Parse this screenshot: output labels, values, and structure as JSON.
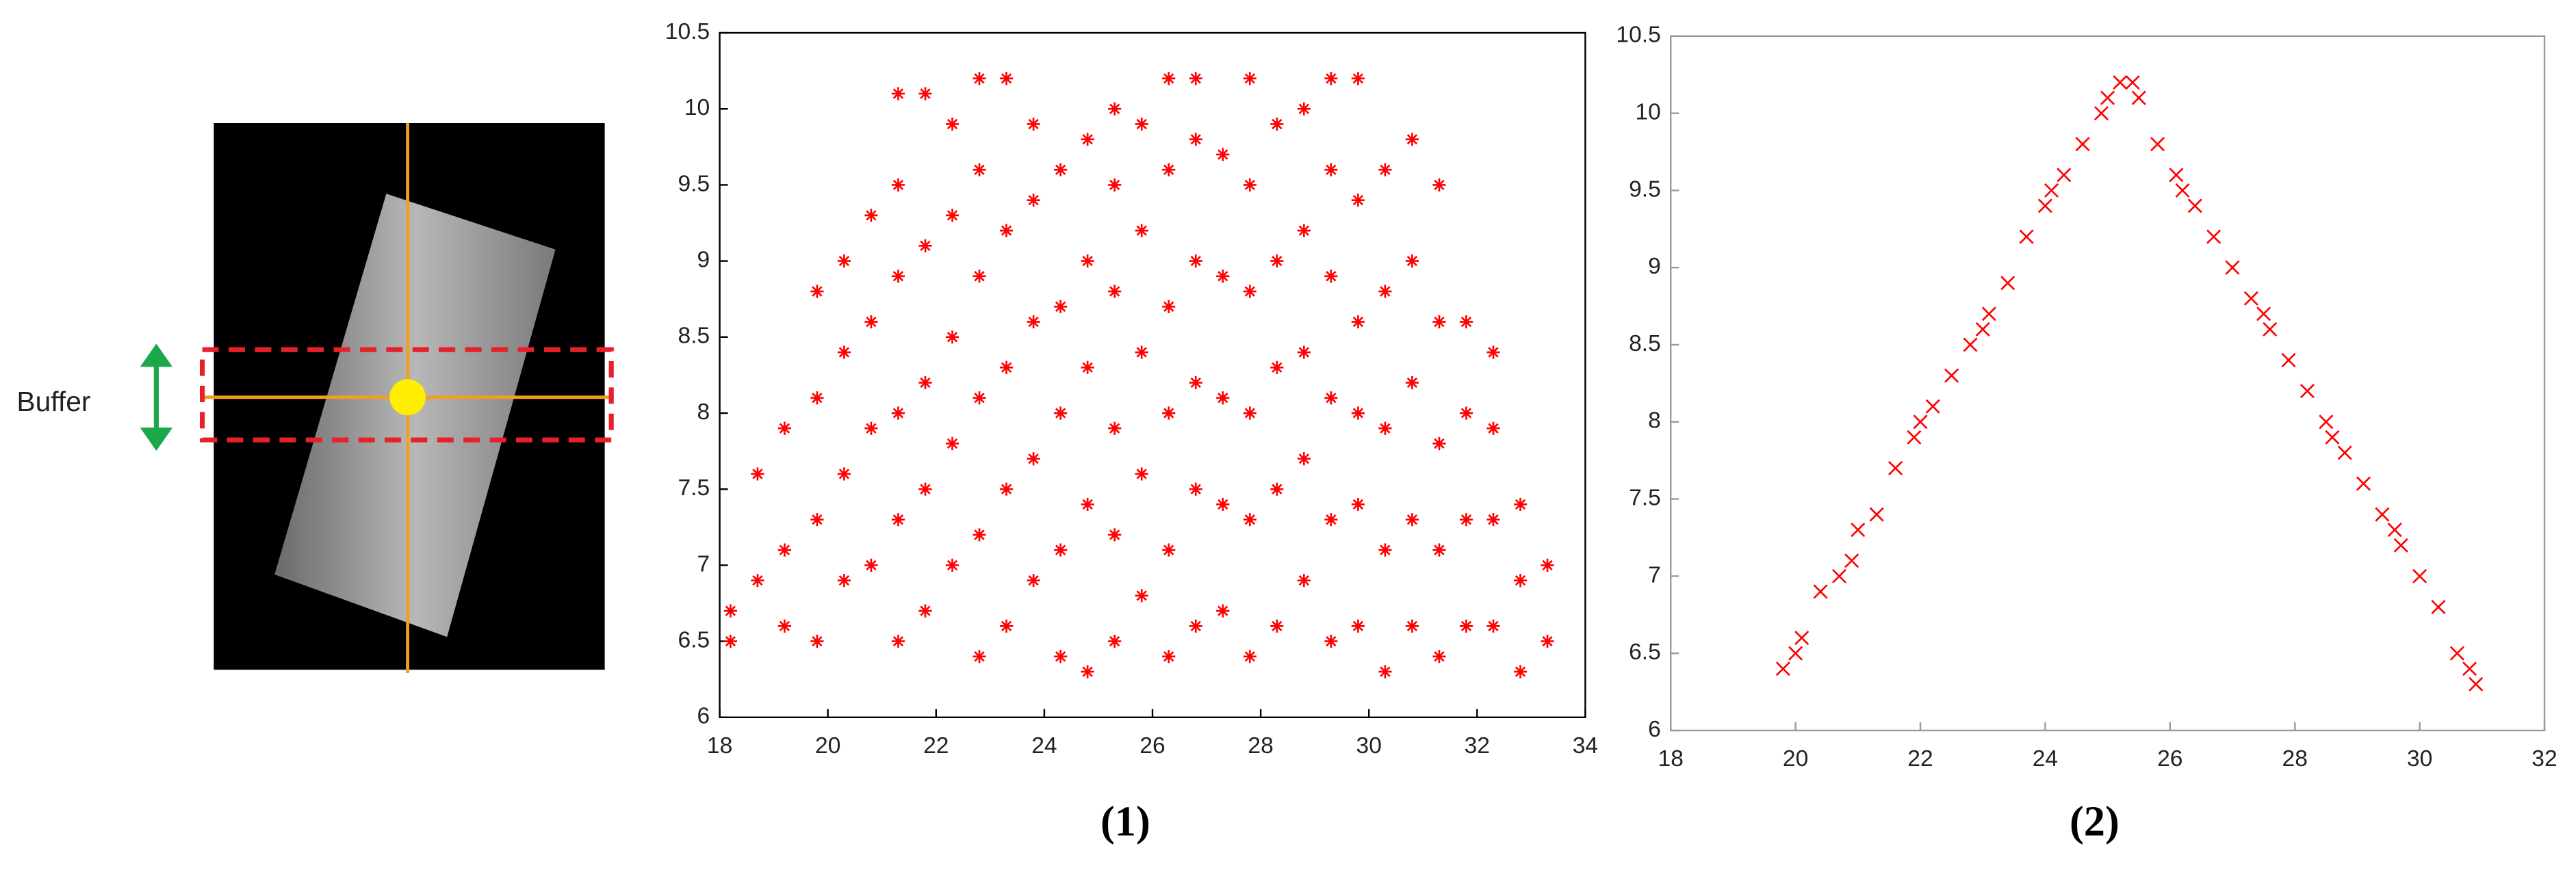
{
  "figure": {
    "buffer_label": "Buffer"
  },
  "chart_data": [
    {
      "type": "scatter",
      "caption": "(1)",
      "color": "#ff0000",
      "marker": "asterisk",
      "xlim": [
        18,
        34
      ],
      "xticks": [
        18,
        20,
        22,
        24,
        26,
        28,
        30,
        32,
        34
      ],
      "ylim": [
        6,
        10.5
      ],
      "yticks": [
        6,
        6.5,
        7,
        7.5,
        8,
        8.5,
        9,
        9.5,
        10,
        10.5
      ],
      "x": [
        18.2,
        18.2,
        18.7,
        18.7,
        19.2,
        19.2,
        19.2,
        19.8,
        19.8,
        19.8,
        19.8,
        20.3,
        20.3,
        20.3,
        20.3,
        20.8,
        20.8,
        20.8,
        20.8,
        21.3,
        21.3,
        21.3,
        21.3,
        21.3,
        21.3,
        21.8,
        21.8,
        21.8,
        21.8,
        21.8,
        22.3,
        22.3,
        22.3,
        22.3,
        22.3,
        22.8,
        22.8,
        22.8,
        22.8,
        22.8,
        22.8,
        23.3,
        23.3,
        23.3,
        23.3,
        23.3,
        23.8,
        23.8,
        23.8,
        23.8,
        23.8,
        24.3,
        24.3,
        24.3,
        24.3,
        24.3,
        24.8,
        24.8,
        24.8,
        24.8,
        24.8,
        25.3,
        25.3,
        25.3,
        25.3,
        25.3,
        25.3,
        25.8,
        25.8,
        25.8,
        25.8,
        25.8,
        26.3,
        26.3,
        26.3,
        26.3,
        26.3,
        26.3,
        26.8,
        26.8,
        26.8,
        26.8,
        26.8,
        26.8,
        27.3,
        27.3,
        27.3,
        27.3,
        27.3,
        27.8,
        27.8,
        27.8,
        27.8,
        27.8,
        27.8,
        28.3,
        28.3,
        28.3,
        28.3,
        28.3,
        28.8,
        28.8,
        28.8,
        28.8,
        28.8,
        29.3,
        29.3,
        29.3,
        29.3,
        29.3,
        29.3,
        29.8,
        29.8,
        29.8,
        29.8,
        29.8,
        29.8,
        30.3,
        30.3,
        30.3,
        30.3,
        30.3,
        30.8,
        30.8,
        30.8,
        30.8,
        30.8,
        31.3,
        31.3,
        31.3,
        31.3,
        31.3,
        31.8,
        31.8,
        31.8,
        31.8,
        32.3,
        32.3,
        32.3,
        32.3,
        32.8,
        32.8,
        32.8,
        33.3,
        33.3
      ],
      "values": [
        6.5,
        6.7,
        6.9,
        7.6,
        6.6,
        7.1,
        7.9,
        6.5,
        7.3,
        8.1,
        8.8,
        6.9,
        7.6,
        8.4,
        9.0,
        7.0,
        7.9,
        8.6,
        9.3,
        6.5,
        7.3,
        8.0,
        8.9,
        9.5,
        10.1,
        6.7,
        7.5,
        8.2,
        9.1,
        10.1,
        7.0,
        7.8,
        8.5,
        9.3,
        9.9,
        6.4,
        7.2,
        8.1,
        8.9,
        9.6,
        10.2,
        6.6,
        7.5,
        8.3,
        9.2,
        10.2,
        6.9,
        7.7,
        8.6,
        9.4,
        9.9,
        6.4,
        7.1,
        8.0,
        8.7,
        9.6,
        6.3,
        7.4,
        8.3,
        9.0,
        9.8,
        6.5,
        7.2,
        7.9,
        8.8,
        9.5,
        10.0,
        6.8,
        7.6,
        8.4,
        9.2,
        9.9,
        6.4,
        7.1,
        8.0,
        8.7,
        9.6,
        10.2,
        6.6,
        7.5,
        8.2,
        9.0,
        9.8,
        10.2,
        6.7,
        7.4,
        8.1,
        8.9,
        9.7,
        6.4,
        7.3,
        8.0,
        8.8,
        9.5,
        10.2,
        6.6,
        7.5,
        8.3,
        9.0,
        9.9,
        6.9,
        7.7,
        8.4,
        9.2,
        10.0,
        6.5,
        7.3,
        8.1,
        8.9,
        9.6,
        10.2,
        6.6,
        7.4,
        8.0,
        8.6,
        9.4,
        10.2,
        6.3,
        7.1,
        7.9,
        8.8,
        9.6,
        6.6,
        7.3,
        8.2,
        9.0,
        9.8,
        6.4,
        7.1,
        7.8,
        8.6,
        9.5,
        6.6,
        7.3,
        8.0,
        8.6,
        6.6,
        7.3,
        7.9,
        8.4,
        6.3,
        6.9,
        7.4,
        6.5,
        7.0
      ]
    },
    {
      "type": "scatter",
      "caption": "(2)",
      "color": "#ff0000",
      "marker": "cross",
      "xlim": [
        18,
        32
      ],
      "xticks": [
        18,
        20,
        22,
        24,
        26,
        28,
        30,
        32
      ],
      "ylim": [
        6,
        10.5
      ],
      "yticks": [
        6,
        6.5,
        7,
        7.5,
        8,
        8.5,
        9,
        9.5,
        10,
        10.5
      ],
      "x": [
        19.8,
        20.1,
        20.4,
        20.7,
        21.0,
        21.3,
        21.6,
        21.9,
        22.2,
        22.5,
        22.8,
        23.1,
        23.4,
        23.7,
        24.0,
        24.3,
        24.6,
        24.9,
        25.2,
        25.5,
        25.8,
        26.1,
        26.4,
        26.7,
        27.0,
        27.3,
        27.6,
        27.9,
        28.2,
        28.5,
        28.8,
        29.1,
        29.4,
        29.7,
        30.0,
        30.3,
        30.6,
        30.9,
        20.0,
        20.9,
        22.0,
        23.0,
        24.1,
        25.0,
        25.4,
        26.2,
        27.5,
        28.6,
        29.6,
        30.8
      ],
      "values": [
        6.4,
        6.6,
        6.9,
        7.0,
        7.3,
        7.4,
        7.7,
        7.9,
        8.1,
        8.3,
        8.5,
        8.7,
        8.9,
        9.2,
        9.4,
        9.6,
        9.8,
        10.0,
        10.2,
        10.1,
        9.8,
        9.6,
        9.4,
        9.2,
        9.0,
        8.8,
        8.6,
        8.4,
        8.2,
        8.0,
        7.8,
        7.6,
        7.4,
        7.2,
        7.0,
        6.8,
        6.5,
        6.3,
        6.5,
        7.1,
        8.0,
        8.6,
        9.5,
        10.1,
        10.2,
        9.5,
        8.7,
        7.9,
        7.3,
        6.4
      ]
    }
  ]
}
